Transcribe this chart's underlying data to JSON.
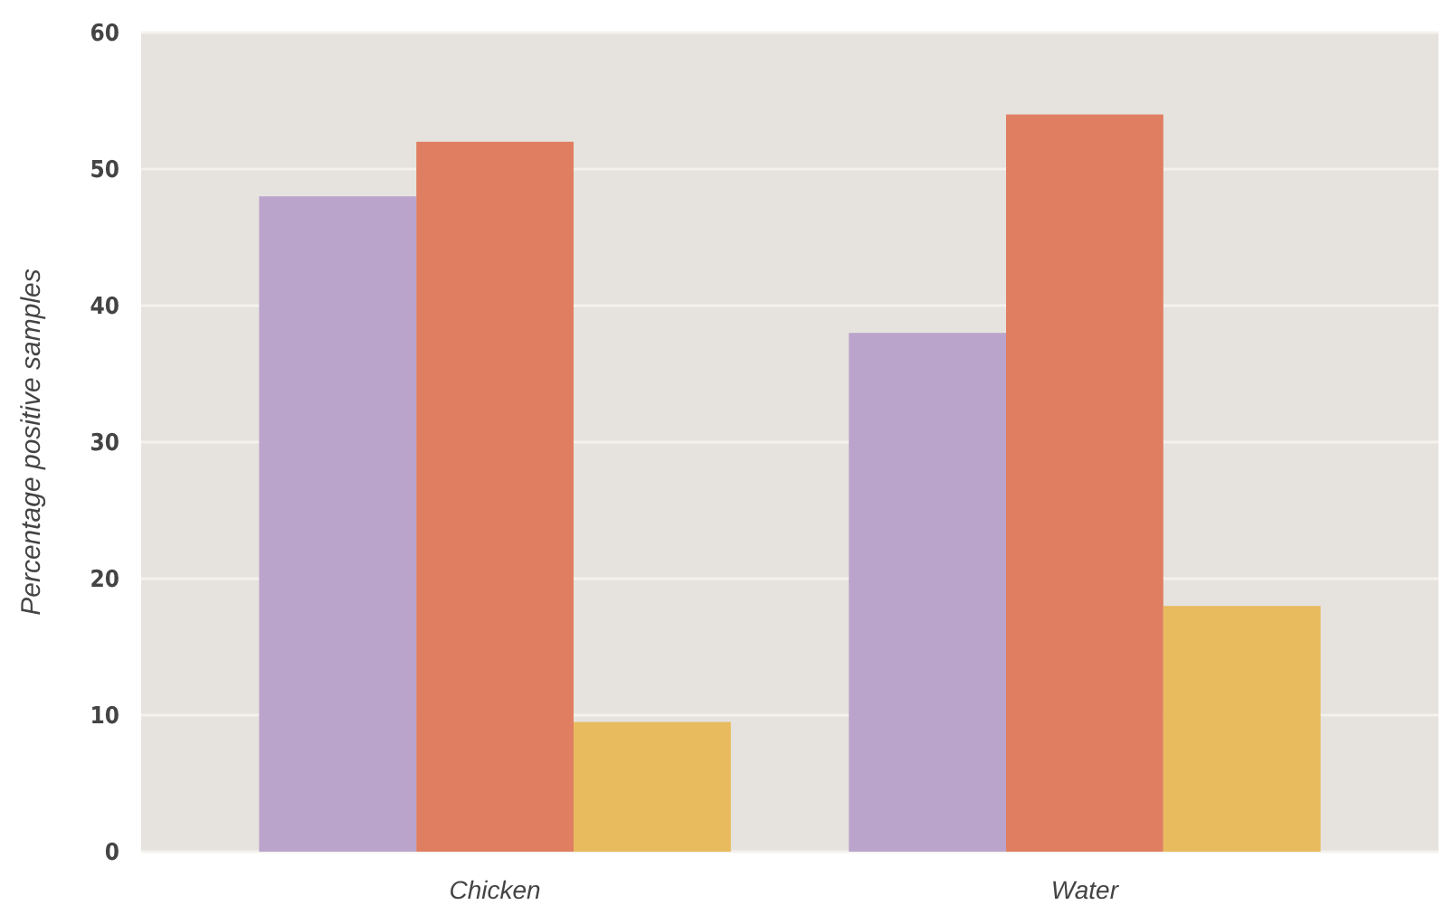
{
  "chart_data": {
    "type": "bar",
    "ylabel": "Percentage positive samples",
    "categories": [
      "Chicken",
      "Water"
    ],
    "series": [
      {
        "color": "#bba4cc",
        "values": [
          48,
          38
        ]
      },
      {
        "color": "#e07e62",
        "values": [
          52,
          54
        ]
      },
      {
        "color": "#e9bb5f",
        "values": [
          9.5,
          18
        ]
      }
    ],
    "ylim": [
      0,
      60
    ],
    "yticks": [
      0,
      10,
      20,
      30,
      40,
      50,
      60
    ],
    "grid": "y"
  }
}
